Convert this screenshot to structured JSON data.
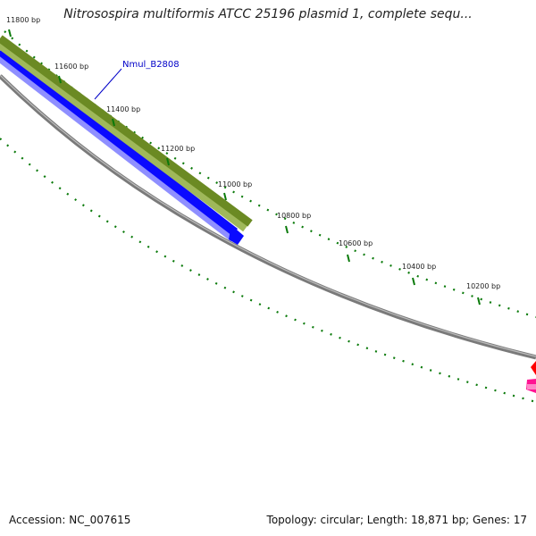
{
  "title": "Nitrosospira multiformis ATCC 25196 plasmid 1, complete sequ...",
  "footer": {
    "accession": "Accession: NC_007615",
    "summary": "Topology: circular; Length: 18,871 bp; Genes: 17"
  },
  "gene_label": "Nmul_B2808",
  "ticks": [
    {
      "bp": 11800,
      "label": "11800 bp"
    },
    {
      "bp": 11600,
      "label": "11600 bp"
    },
    {
      "bp": 11400,
      "label": "11400 bp"
    },
    {
      "bp": 11200,
      "label": "11200 bp"
    },
    {
      "bp": 11000,
      "label": "11000 bp"
    },
    {
      "bp": 10800,
      "label": "10800 bp"
    },
    {
      "bp": 10600,
      "label": "10600 bp"
    },
    {
      "bp": 10400,
      "label": "10400 bp"
    },
    {
      "bp": 10200,
      "label": "10200 bp"
    }
  ],
  "colors": {
    "backbone": "#7a7a7a",
    "olive_feature": "#6b8a23",
    "olive_light": "#9fb85a",
    "blue_feature": "#0a0aff",
    "blue_light": "#8f8fff",
    "red_feature": "#ff0000",
    "pink_feature": "#ff1493",
    "tick_green": "#0a7a0a",
    "label_blue": "#0000c8"
  }
}
